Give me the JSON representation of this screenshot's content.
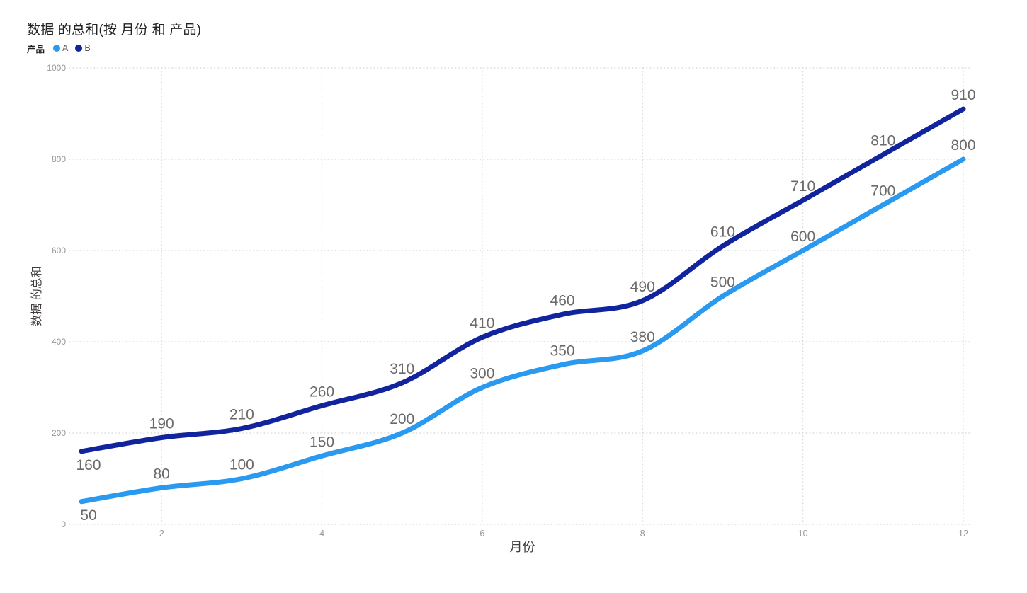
{
  "title": "数据 的总和(按 月份 和 产品)",
  "legend": {
    "label": "产品",
    "items": [
      {
        "name": "A",
        "color": "#2A99F0"
      },
      {
        "name": "B",
        "color": "#12239E"
      }
    ]
  },
  "chart_data": {
    "type": "line",
    "title": "数据 的总和(按 月份 和 产品)",
    "xlabel": "月份",
    "ylabel": "数据 的总和",
    "x": [
      1,
      2,
      3,
      4,
      5,
      6,
      7,
      8,
      9,
      10,
      11,
      12
    ],
    "series": [
      {
        "name": "A",
        "color": "#2A99F0",
        "values": [
          50,
          80,
          100,
          150,
          200,
          300,
          350,
          380,
          500,
          600,
          700,
          800
        ]
      },
      {
        "name": "B",
        "color": "#12239E",
        "values": [
          160,
          190,
          210,
          260,
          310,
          410,
          460,
          490,
          610,
          710,
          810,
          910
        ]
      }
    ],
    "xlim": [
      1,
      12
    ],
    "ylim": [
      0,
      1000
    ],
    "xticks": [
      2,
      4,
      6,
      8,
      10,
      12
    ],
    "yticks": [
      0,
      200,
      400,
      600,
      800,
      1000
    ],
    "grid": "dotted",
    "smooth": true,
    "data_labels": true,
    "legend_position": "top-left"
  },
  "colors": {
    "data_label": "#6C6A68",
    "tick_label": "#979593",
    "axis_title": "#403E3C",
    "gridline": "#DCDCDC"
  }
}
